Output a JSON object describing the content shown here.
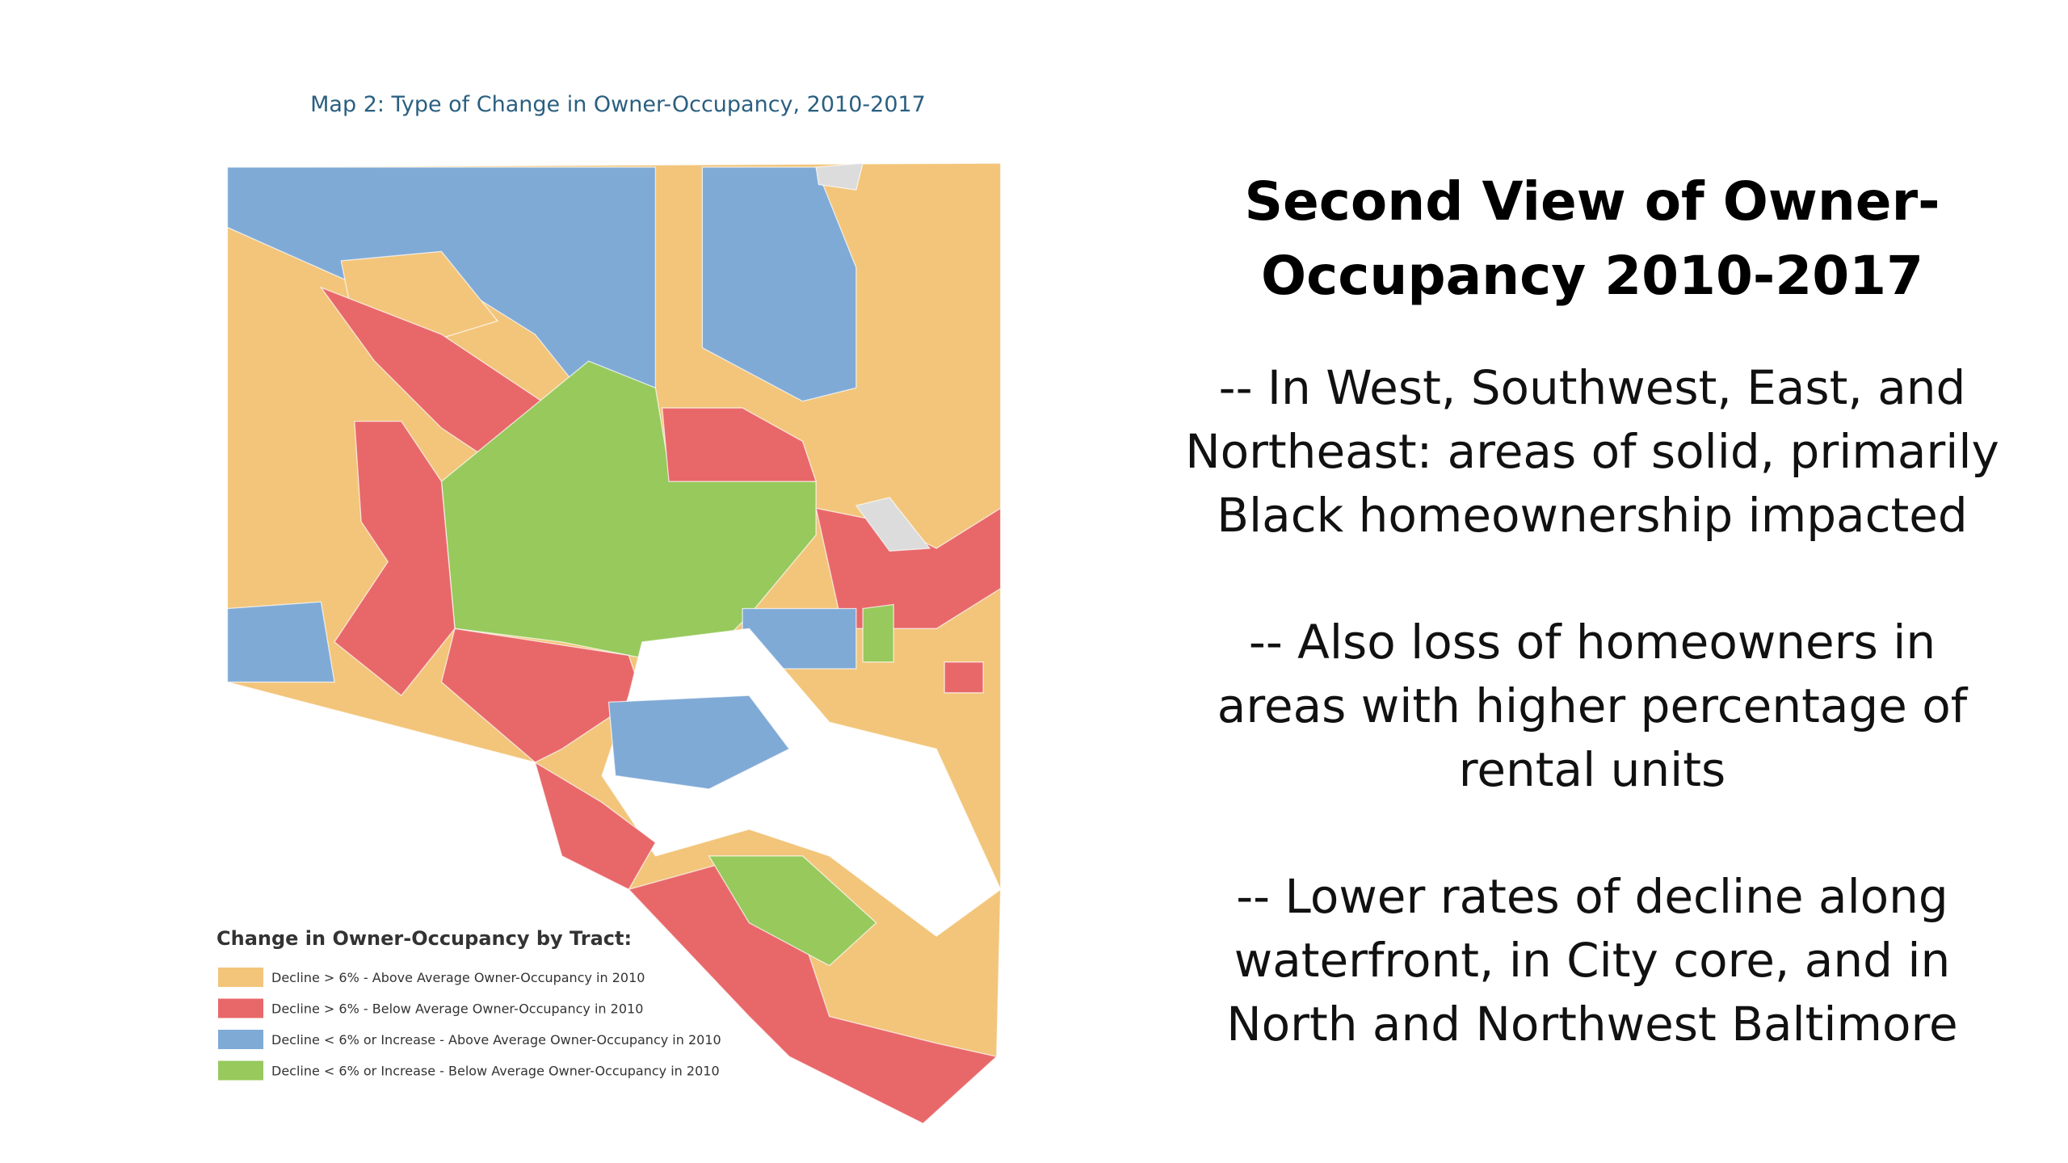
{
  "map": {
    "title": "Map 2: Type of Change in Owner-Occupancy, 2010-2017",
    "legend": {
      "title": "Change in Owner-Occupancy by Tract:",
      "items": [
        {
          "label": "Decline > 6% - Above Average Owner-Occupancy in 2010",
          "color": "#f2c57a"
        },
        {
          "label": "Decline > 6% - Below Average Owner-Occupancy in 2010",
          "color": "#e8686a"
        },
        {
          "label": "Decline < 6% or Increase - Above Average Owner-Occupancy in 2010",
          "color": "#80aad6"
        },
        {
          "label": "Decline < 6% or Increase - Below Average Owner-Occupancy in 2010",
          "color": "#97c95c"
        }
      ]
    }
  },
  "slide": {
    "title": [
      "Second View of Owner-",
      "Occupancy 2010-2017"
    ],
    "bullets": [
      [
        "-- In West, Southwest, East, and",
        "Northeast: areas of solid, primarily",
        "Black homeownership impacted"
      ],
      [
        "-- Also loss of homeowners in",
        "areas with higher percentage of",
        "rental units"
      ],
      [
        "-- Lower rates of decline along",
        "waterfront, in City core, and in",
        "North and Northwest Baltimore"
      ]
    ]
  }
}
